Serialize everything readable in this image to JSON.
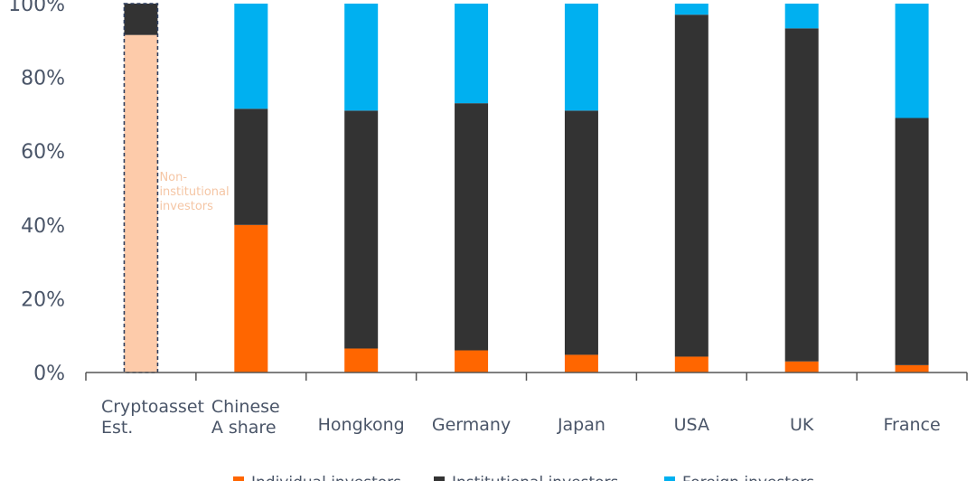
{
  "chart_data": {
    "type": "bar",
    "stacked": true,
    "ylim": [
      0,
      100
    ],
    "y_ticks": [
      "0%",
      "20%",
      "40%",
      "60%",
      "80%",
      "100%"
    ],
    "categories": [
      [
        "Cryptoasset",
        "Est."
      ],
      [
        "Chinese",
        "A share"
      ],
      [
        "Hongkong"
      ],
      [
        "Germany"
      ],
      [
        "Japan"
      ],
      [
        "USA"
      ],
      [
        "UK"
      ],
      [
        "France"
      ]
    ],
    "series": [
      {
        "name": "Individual investors",
        "color": "#ff6600",
        "values": [
          0,
          40,
          6.5,
          6,
          4.8,
          4.3,
          3,
          2
        ]
      },
      {
        "name": "Institutional investors",
        "color": "#333333",
        "values": [
          8.5,
          31.5,
          64.5,
          67,
          66.2,
          92.7,
          90.3,
          67
        ]
      },
      {
        "name": "Foreign investors",
        "color": "#00b0f0",
        "values": [
          0,
          28.5,
          29,
          27,
          29,
          3,
          6.7,
          31
        ]
      }
    ],
    "highlight": {
      "category_index": 0,
      "fill": "#fdcbaa",
      "value": 91.5
    },
    "annotation": [
      "Non-",
      "institutional",
      "investors"
    ],
    "legend_position": "bottom"
  }
}
